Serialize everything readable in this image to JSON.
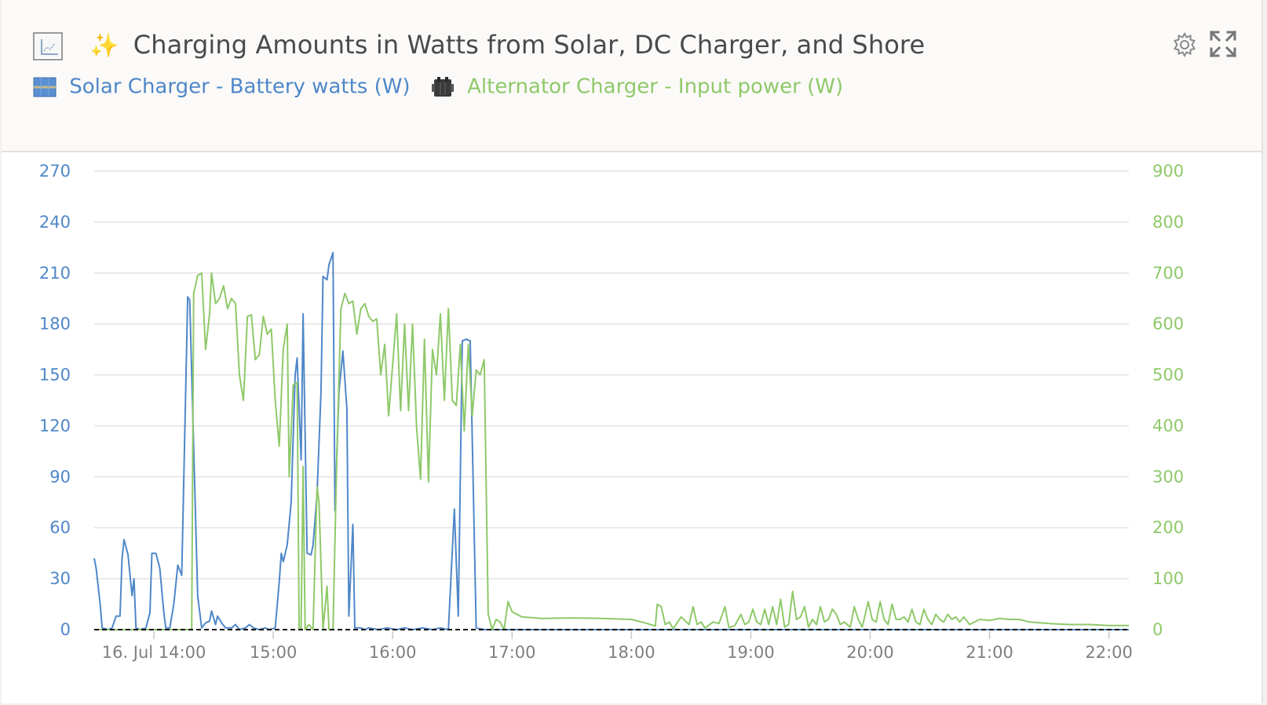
{
  "header": {
    "title_emoji": "✨",
    "title": "Charging Amounts in Watts from Solar, DC Charger, and Shore",
    "chart_type_icon": "line-chart-icon",
    "settings_icon": "gear-icon",
    "expand_icon": "expand-icon"
  },
  "colors": {
    "solar": "#4f87c8",
    "alternator": "#8fc96a",
    "gridline": "#e3e3e3",
    "zeroline": "#000000",
    "axis_text_left": "#4f87c8",
    "axis_text_right": "#8fc96a"
  },
  "legend": [
    {
      "label": "Solar Charger  -  Battery watts (W)",
      "icon": "solar-panel-icon",
      "color": "#4f87c8"
    },
    {
      "label": "Alternator Charger  -  Input power (W)",
      "icon": "dc-charger-icon",
      "color": "#8fc96a"
    }
  ],
  "chart_data": {
    "type": "line",
    "x_unit": "time",
    "x_range": [
      "16. Jul 13:30",
      "22:10"
    ],
    "x_ticks": [
      "16. Jul 14:00",
      "15:00",
      "16:00",
      "17:00",
      "18:00",
      "19:00",
      "20:00",
      "21:00",
      "22:00"
    ],
    "y_left": {
      "range": [
        0,
        270
      ],
      "ticks": [
        0,
        30,
        60,
        90,
        120,
        150,
        180,
        210,
        240,
        270
      ]
    },
    "y_right": {
      "range": [
        0,
        900
      ],
      "ticks": [
        0,
        100,
        200,
        300,
        400,
        500,
        600,
        700,
        800,
        900
      ]
    },
    "grid": true,
    "legend_position": "top-left",
    "series": [
      {
        "name": "Solar Charger  -  Battery watts (W)",
        "axis": "left",
        "points": [
          [
            "13:30",
            42
          ],
          [
            "13:31",
            36
          ],
          [
            "13:33",
            15
          ],
          [
            "13:34",
            1
          ],
          [
            "13:37",
            0
          ],
          [
            "13:39",
            1
          ],
          [
            "13:41",
            8
          ],
          [
            "13:43",
            8
          ],
          [
            "13:44",
            42
          ],
          [
            "13:45",
            53
          ],
          [
            "13:47",
            44
          ],
          [
            "13:49",
            20
          ],
          [
            "13:50",
            30
          ],
          [
            "13:51",
            1
          ],
          [
            "13:53",
            0
          ],
          [
            "13:56",
            1
          ],
          [
            "13:58",
            10
          ],
          [
            "13:59",
            45
          ],
          [
            "14:01",
            45
          ],
          [
            "14:03",
            36
          ],
          [
            "14:05",
            10
          ],
          [
            "14:06",
            1
          ],
          [
            "14:08",
            1
          ],
          [
            "14:10",
            15
          ],
          [
            "14:12",
            38
          ],
          [
            "14:14",
            32
          ],
          [
            "14:17",
            196
          ],
          [
            "14:18",
            194
          ],
          [
            "14:22",
            20
          ],
          [
            "14:24",
            1
          ],
          [
            "14:26",
            4
          ],
          [
            "14:28",
            5
          ],
          [
            "14:29",
            11
          ],
          [
            "14:31",
            3
          ],
          [
            "14:32",
            8
          ],
          [
            "14:34",
            4
          ],
          [
            "14:36",
            1
          ],
          [
            "14:39",
            1
          ],
          [
            "14:41",
            3
          ],
          [
            "14:43",
            0
          ],
          [
            "14:46",
            1
          ],
          [
            "14:48",
            3
          ],
          [
            "14:50",
            1
          ],
          [
            "14:53",
            0
          ],
          [
            "14:56",
            1
          ],
          [
            "14:58",
            0
          ],
          [
            "15:01",
            1
          ],
          [
            "15:03",
            28
          ],
          [
            "15:04",
            45
          ],
          [
            "15:05",
            40
          ],
          [
            "15:07",
            50
          ],
          [
            "15:09",
            75
          ],
          [
            "15:11",
            150
          ],
          [
            "15:12",
            160
          ],
          [
            "15:14",
            100
          ],
          [
            "15:15",
            186
          ],
          [
            "15:17",
            45
          ],
          [
            "15:19",
            44
          ],
          [
            "15:20",
            50
          ],
          [
            "15:22",
            80
          ],
          [
            "15:24",
            140
          ],
          [
            "15:25",
            208
          ],
          [
            "15:27",
            206
          ],
          [
            "15:28",
            215
          ],
          [
            "15:30",
            222
          ],
          [
            "15:31",
            70
          ],
          [
            "15:33",
            140
          ],
          [
            "15:35",
            164
          ],
          [
            "15:37",
            130
          ],
          [
            "15:38",
            8
          ],
          [
            "15:40",
            62
          ],
          [
            "15:41",
            1
          ],
          [
            "15:44",
            1
          ],
          [
            "15:46",
            0
          ],
          [
            "15:48",
            1
          ],
          [
            "15:53",
            0
          ],
          [
            "15:57",
            1
          ],
          [
            "16:02",
            0
          ],
          [
            "16:06",
            1
          ],
          [
            "16:10",
            0
          ],
          [
            "16:15",
            1
          ],
          [
            "16:20",
            0
          ],
          [
            "16:24",
            1
          ],
          [
            "16:28",
            0
          ],
          [
            "16:31",
            71
          ],
          [
            "16:33",
            8
          ],
          [
            "16:35",
            170
          ],
          [
            "16:37",
            171
          ],
          [
            "16:39",
            170
          ],
          [
            "16:42",
            1
          ],
          [
            "16:46",
            0
          ],
          [
            "17:00",
            0
          ],
          [
            "18:00",
            0
          ],
          [
            "19:00",
            0
          ],
          [
            "20:00",
            0
          ],
          [
            "21:00",
            0
          ],
          [
            "22:00",
            0
          ],
          [
            "22:10",
            0
          ]
        ]
      },
      {
        "name": "Alternator Charger  -  Input power (W)",
        "axis": "right",
        "points": [
          [
            "13:30",
            0
          ],
          [
            "14:19",
            0
          ],
          [
            "14:20",
            660
          ],
          [
            "14:22",
            695
          ],
          [
            "14:24",
            700
          ],
          [
            "14:26",
            550
          ],
          [
            "14:28",
            620
          ],
          [
            "14:29",
            700
          ],
          [
            "14:31",
            640
          ],
          [
            "14:33",
            650
          ],
          [
            "14:35",
            675
          ],
          [
            "14:37",
            630
          ],
          [
            "14:39",
            650
          ],
          [
            "14:41",
            640
          ],
          [
            "14:43",
            500
          ],
          [
            "14:45",
            450
          ],
          [
            "14:47",
            615
          ],
          [
            "14:49",
            618
          ],
          [
            "14:51",
            530
          ],
          [
            "14:53",
            540
          ],
          [
            "14:55",
            615
          ],
          [
            "14:57",
            580
          ],
          [
            "14:59",
            590
          ],
          [
            "15:01",
            450
          ],
          [
            "15:03",
            360
          ],
          [
            "15:05",
            550
          ],
          [
            "15:07",
            600
          ],
          [
            "15:08",
            300
          ],
          [
            "15:10",
            480
          ],
          [
            "15:12",
            485
          ],
          [
            "15:13",
            0
          ],
          [
            "15:14",
            0
          ],
          [
            "15:15",
            320
          ],
          [
            "15:16",
            0
          ],
          [
            "15:18",
            10
          ],
          [
            "15:20",
            0
          ],
          [
            "15:22",
            280
          ],
          [
            "15:23",
            250
          ],
          [
            "15:25",
            0
          ],
          [
            "15:27",
            85
          ],
          [
            "15:28",
            0
          ],
          [
            "15:30",
            0
          ],
          [
            "15:32",
            350
          ],
          [
            "15:34",
            630
          ],
          [
            "15:36",
            660
          ],
          [
            "15:38",
            640
          ],
          [
            "15:40",
            645
          ],
          [
            "15:42",
            580
          ],
          [
            "15:44",
            630
          ],
          [
            "15:46",
            640
          ],
          [
            "15:48",
            615
          ],
          [
            "15:50",
            605
          ],
          [
            "15:52",
            610
          ],
          [
            "15:54",
            500
          ],
          [
            "15:56",
            560
          ],
          [
            "15:58",
            420
          ],
          [
            "16:00",
            520
          ],
          [
            "16:02",
            620
          ],
          [
            "16:04",
            430
          ],
          [
            "16:06",
            600
          ],
          [
            "16:08",
            430
          ],
          [
            "16:10",
            600
          ],
          [
            "16:12",
            400
          ],
          [
            "16:14",
            295
          ],
          [
            "16:16",
            570
          ],
          [
            "16:18",
            290
          ],
          [
            "16:20",
            550
          ],
          [
            "16:22",
            500
          ],
          [
            "16:24",
            620
          ],
          [
            "16:26",
            450
          ],
          [
            "16:28",
            630
          ],
          [
            "16:30",
            450
          ],
          [
            "16:32",
            440
          ],
          [
            "16:34",
            560
          ],
          [
            "16:36",
            390
          ],
          [
            "16:38",
            560
          ],
          [
            "16:40",
            420
          ],
          [
            "16:42",
            510
          ],
          [
            "16:44",
            500
          ],
          [
            "16:46",
            530
          ],
          [
            "16:48",
            30
          ],
          [
            "16:50",
            0
          ],
          [
            "16:52",
            20
          ],
          [
            "16:54",
            15
          ],
          [
            "16:56",
            0
          ],
          [
            "16:58",
            55
          ],
          [
            "17:00",
            35
          ],
          [
            "17:05",
            25
          ],
          [
            "17:15",
            22
          ],
          [
            "17:30",
            23
          ],
          [
            "17:45",
            22
          ],
          [
            "18:00",
            20
          ],
          [
            "18:08",
            12
          ],
          [
            "18:12",
            7
          ],
          [
            "18:13",
            50
          ],
          [
            "18:15",
            45
          ],
          [
            "18:17",
            10
          ],
          [
            "18:19",
            15
          ],
          [
            "18:21",
            2
          ],
          [
            "18:25",
            25
          ],
          [
            "18:29",
            10
          ],
          [
            "18:31",
            45
          ],
          [
            "18:33",
            10
          ],
          [
            "18:35",
            15
          ],
          [
            "18:37",
            3
          ],
          [
            "18:41",
            15
          ],
          [
            "18:44",
            12
          ],
          [
            "18:47",
            45
          ],
          [
            "18:49",
            4
          ],
          [
            "18:52",
            8
          ],
          [
            "18:55",
            30
          ],
          [
            "18:57",
            10
          ],
          [
            "18:59",
            15
          ],
          [
            "19:01",
            40
          ],
          [
            "19:03",
            15
          ],
          [
            "19:05",
            10
          ],
          [
            "19:07",
            40
          ],
          [
            "19:09",
            10
          ],
          [
            "19:11",
            45
          ],
          [
            "19:13",
            10
          ],
          [
            "19:15",
            60
          ],
          [
            "19:17",
            5
          ],
          [
            "19:19",
            10
          ],
          [
            "19:21",
            75
          ],
          [
            "19:23",
            20
          ],
          [
            "19:25",
            25
          ],
          [
            "19:27",
            45
          ],
          [
            "19:29",
            5
          ],
          [
            "19:31",
            20
          ],
          [
            "19:33",
            10
          ],
          [
            "19:35",
            45
          ],
          [
            "19:37",
            15
          ],
          [
            "19:39",
            20
          ],
          [
            "19:41",
            40
          ],
          [
            "19:43",
            30
          ],
          [
            "19:45",
            10
          ],
          [
            "19:47",
            15
          ],
          [
            "19:50",
            5
          ],
          [
            "19:52",
            45
          ],
          [
            "19:54",
            20
          ],
          [
            "19:56",
            5
          ],
          [
            "19:59",
            55
          ],
          [
            "20:01",
            20
          ],
          [
            "20:03",
            15
          ],
          [
            "20:05",
            55
          ],
          [
            "20:07",
            20
          ],
          [
            "20:09",
            10
          ],
          [
            "20:11",
            50
          ],
          [
            "20:13",
            20
          ],
          [
            "20:15",
            20
          ],
          [
            "20:17",
            25
          ],
          [
            "20:19",
            15
          ],
          [
            "20:21",
            40
          ],
          [
            "20:23",
            15
          ],
          [
            "20:25",
            10
          ],
          [
            "20:27",
            40
          ],
          [
            "20:29",
            20
          ],
          [
            "20:31",
            10
          ],
          [
            "20:33",
            30
          ],
          [
            "20:35",
            20
          ],
          [
            "20:37",
            15
          ],
          [
            "20:39",
            30
          ],
          [
            "20:41",
            20
          ],
          [
            "20:43",
            25
          ],
          [
            "20:45",
            15
          ],
          [
            "20:47",
            25
          ],
          [
            "20:50",
            10
          ],
          [
            "20:55",
            20
          ],
          [
            "21:00",
            18
          ],
          [
            "21:05",
            22
          ],
          [
            "21:10",
            20
          ],
          [
            "21:15",
            20
          ],
          [
            "21:20",
            15
          ],
          [
            "21:30",
            12
          ],
          [
            "21:40",
            10
          ],
          [
            "21:50",
            10
          ],
          [
            "22:00",
            8
          ],
          [
            "22:10",
            8
          ]
        ]
      }
    ]
  }
}
